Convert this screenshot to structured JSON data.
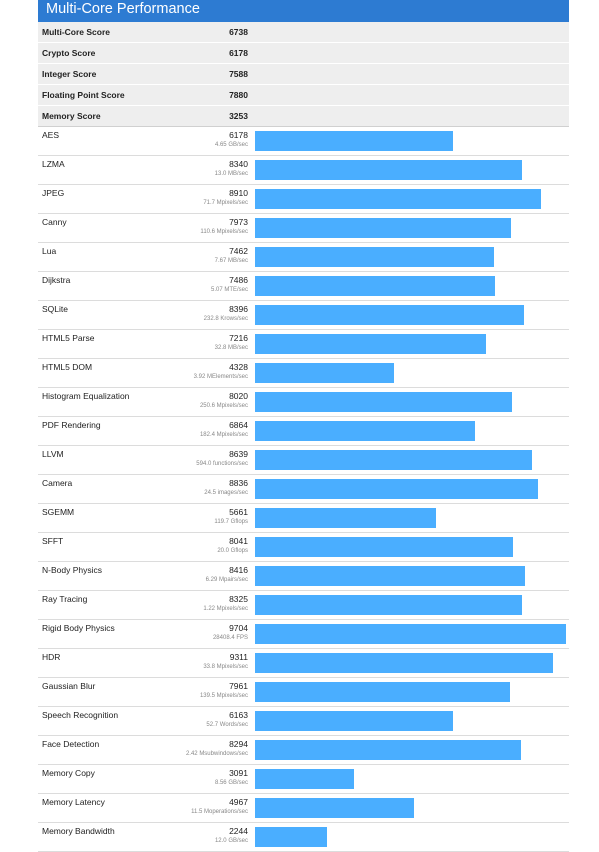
{
  "title": "Multi-Core Performance",
  "colors": {
    "header_bg": "#2d7bd2",
    "bar": "#4aaeff",
    "summary_bg": "#eeeeee"
  },
  "summary": [
    {
      "label": "Multi-Core Score",
      "value": "6738"
    },
    {
      "label": "Crypto Score",
      "value": "6178"
    },
    {
      "label": "Integer Score",
      "value": "7588"
    },
    {
      "label": "Floating Point Score",
      "value": "7880"
    },
    {
      "label": "Memory Score",
      "value": "3253"
    }
  ],
  "bar_max": 9704,
  "benchmarks": [
    {
      "name": "AES",
      "score": "6178",
      "rate": "4.65 GB/sec",
      "value": 6178
    },
    {
      "name": "LZMA",
      "score": "8340",
      "rate": "13.0 MB/sec",
      "value": 8340
    },
    {
      "name": "JPEG",
      "score": "8910",
      "rate": "71.7 Mpixels/sec",
      "value": 8910
    },
    {
      "name": "Canny",
      "score": "7973",
      "rate": "110.6 Mpixels/sec",
      "value": 7973
    },
    {
      "name": "Lua",
      "score": "7462",
      "rate": "7.67 MB/sec",
      "value": 7462
    },
    {
      "name": "Dijkstra",
      "score": "7486",
      "rate": "5.07 MTE/sec",
      "value": 7486
    },
    {
      "name": "SQLite",
      "score": "8396",
      "rate": "232.8 Krows/sec",
      "value": 8396
    },
    {
      "name": "HTML5 Parse",
      "score": "7216",
      "rate": "32.8 MB/sec",
      "value": 7216
    },
    {
      "name": "HTML5 DOM",
      "score": "4328",
      "rate": "3.92 MElements/sec",
      "value": 4328
    },
    {
      "name": "Histogram Equalization",
      "score": "8020",
      "rate": "250.6 Mpixels/sec",
      "value": 8020
    },
    {
      "name": "PDF Rendering",
      "score": "6864",
      "rate": "182.4 Mpixels/sec",
      "value": 6864
    },
    {
      "name": "LLVM",
      "score": "8639",
      "rate": "594.0 functions/sec",
      "value": 8639
    },
    {
      "name": "Camera",
      "score": "8836",
      "rate": "24.5 images/sec",
      "value": 8836
    },
    {
      "name": "SGEMM",
      "score": "5661",
      "rate": "119.7 Gflops",
      "value": 5661
    },
    {
      "name": "SFFT",
      "score": "8041",
      "rate": "20.0 Gflops",
      "value": 8041
    },
    {
      "name": "N-Body Physics",
      "score": "8416",
      "rate": "6.29 Mpairs/sec",
      "value": 8416
    },
    {
      "name": "Ray Tracing",
      "score": "8325",
      "rate": "1.22 Mpixels/sec",
      "value": 8325
    },
    {
      "name": "Rigid Body Physics",
      "score": "9704",
      "rate": "28408.4 FPS",
      "value": 9704
    },
    {
      "name": "HDR",
      "score": "9311",
      "rate": "33.8 Mpixels/sec",
      "value": 9311
    },
    {
      "name": "Gaussian Blur",
      "score": "7961",
      "rate": "139.5 Mpixels/sec",
      "value": 7961
    },
    {
      "name": "Speech Recognition",
      "score": "6163",
      "rate": "52.7 Words/sec",
      "value": 6163
    },
    {
      "name": "Face Detection",
      "score": "8294",
      "rate": "2.42 Msubwindows/sec",
      "value": 8294
    },
    {
      "name": "Memory Copy",
      "score": "3091",
      "rate": "8.56 GB/sec",
      "value": 3091
    },
    {
      "name": "Memory Latency",
      "score": "4967",
      "rate": "11.5 Moperations/sec",
      "value": 4967
    },
    {
      "name": "Memory Bandwidth",
      "score": "2244",
      "rate": "12.0 GB/sec",
      "value": 2244
    }
  ]
}
